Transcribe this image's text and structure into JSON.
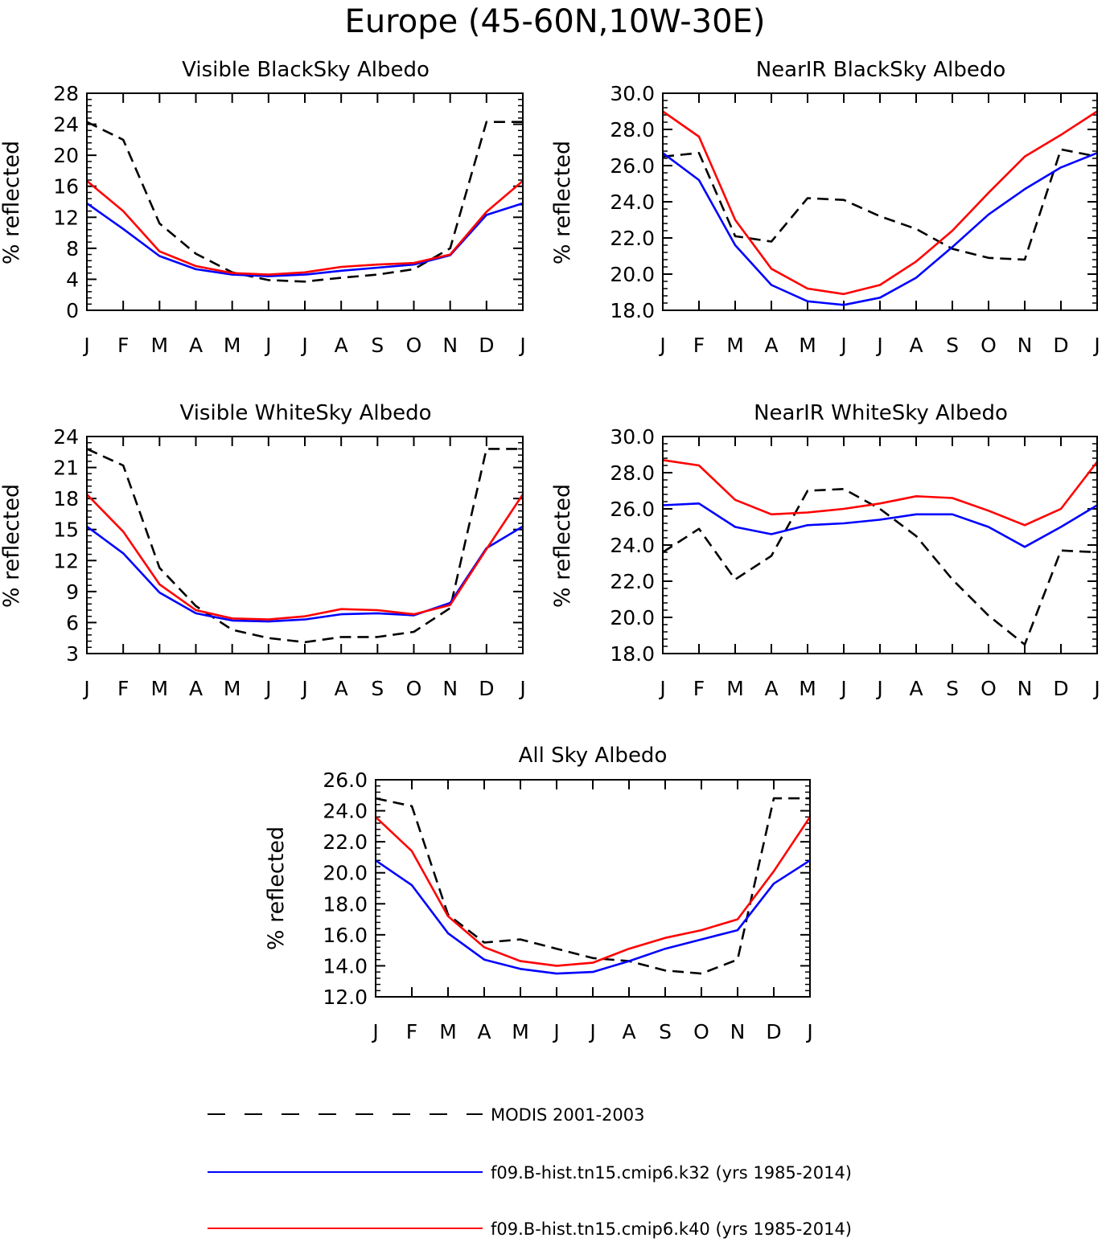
{
  "figure": {
    "title": "Europe (45-60N,10W-30E)"
  },
  "legend": {
    "items": [
      {
        "label": "MODIS 2001-2003",
        "color": "#000000",
        "style": "dashed"
      },
      {
        "label": "f09.B-hist.tn15.cmip6.k32 (yrs 1985-2014)",
        "color": "#0000ff",
        "style": "solid"
      },
      {
        "label": "f09.B-hist.tn15.cmip6.k40 (yrs 1985-2014)",
        "color": "#ff0000",
        "style": "solid"
      }
    ]
  },
  "chart_data": [
    {
      "type": "line",
      "title": "Visible BlackSky Albedo",
      "xlabel": "",
      "ylabel": "% reflected",
      "x": [
        "J",
        "F",
        "M",
        "A",
        "M",
        "J",
        "J",
        "A",
        "S",
        "O",
        "N",
        "D",
        "J"
      ],
      "ylim": [
        0,
        28
      ],
      "yticks": [
        "0",
        "4",
        "8",
        "12",
        "16",
        "20",
        "24",
        "28"
      ],
      "grid": false,
      "series": [
        {
          "name": "MODIS 2001-2003",
          "color": "#000000",
          "style": "dashed",
          "values": [
            24.3,
            22.0,
            11.2,
            7.3,
            4.9,
            3.9,
            3.7,
            4.2,
            4.6,
            5.3,
            8.0,
            24.3,
            24.3
          ]
        },
        {
          "name": "f09.B-hist.tn15.cmip6.k32 (yrs 1985-2014)",
          "color": "#0000ff",
          "style": "solid",
          "values": [
            13.8,
            10.5,
            7.0,
            5.3,
            4.6,
            4.4,
            4.6,
            5.1,
            5.5,
            5.9,
            7.1,
            12.3,
            13.8
          ]
        },
        {
          "name": "f09.B-hist.tn15.cmip6.k40 (yrs 1985-2014)",
          "color": "#ff0000",
          "style": "solid",
          "values": [
            16.7,
            12.8,
            7.6,
            5.7,
            4.8,
            4.6,
            4.9,
            5.6,
            5.9,
            6.1,
            7.2,
            12.7,
            16.7
          ]
        }
      ]
    },
    {
      "type": "line",
      "title": "NearIR BlackSky Albedo",
      "xlabel": "",
      "ylabel": "% reflected",
      "x": [
        "J",
        "F",
        "M",
        "A",
        "M",
        "J",
        "J",
        "A",
        "S",
        "O",
        "N",
        "D",
        "J"
      ],
      "ylim": [
        18,
        30
      ],
      "yticks": [
        "18.0",
        "20.0",
        "22.0",
        "24.0",
        "26.0",
        "28.0",
        "30.0"
      ],
      "grid": false,
      "series": [
        {
          "name": "MODIS 2001-2003",
          "color": "#000000",
          "style": "dashed",
          "values": [
            26.5,
            26.7,
            22.1,
            21.8,
            24.2,
            24.1,
            23.2,
            22.5,
            21.4,
            20.9,
            20.8,
            26.9,
            26.5
          ]
        },
        {
          "name": "f09.B-hist.tn15.cmip6.k32 (yrs 1985-2014)",
          "color": "#0000ff",
          "style": "solid",
          "values": [
            26.7,
            25.2,
            21.6,
            19.4,
            18.5,
            18.3,
            18.7,
            19.8,
            21.5,
            23.3,
            24.7,
            25.9,
            26.7
          ]
        },
        {
          "name": "f09.B-hist.tn15.cmip6.k40 (yrs 1985-2014)",
          "color": "#ff0000",
          "style": "solid",
          "values": [
            29.0,
            27.6,
            23.0,
            20.3,
            19.2,
            18.9,
            19.4,
            20.7,
            22.4,
            24.5,
            26.5,
            27.7,
            29.0
          ]
        }
      ]
    },
    {
      "type": "line",
      "title": "Visible WhiteSky Albedo",
      "xlabel": "",
      "ylabel": "% reflected",
      "x": [
        "J",
        "F",
        "M",
        "A",
        "M",
        "J",
        "J",
        "A",
        "S",
        "O",
        "N",
        "D",
        "J"
      ],
      "ylim": [
        3,
        24
      ],
      "yticks": [
        "3",
        "6",
        "9",
        "12",
        "15",
        "18",
        "21",
        "24"
      ],
      "grid": false,
      "series": [
        {
          "name": "MODIS 2001-2003",
          "color": "#000000",
          "style": "dashed",
          "values": [
            22.8,
            21.2,
            11.3,
            7.6,
            5.3,
            4.5,
            4.1,
            4.6,
            4.6,
            5.1,
            7.4,
            22.8,
            22.8
          ]
        },
        {
          "name": "f09.B-hist.tn15.cmip6.k32 (yrs 1985-2014)",
          "color": "#0000ff",
          "style": "solid",
          "values": [
            15.3,
            12.7,
            8.9,
            6.9,
            6.2,
            6.1,
            6.3,
            6.8,
            6.9,
            6.7,
            7.9,
            13.2,
            15.3
          ]
        },
        {
          "name": "f09.B-hist.tn15.cmip6.k40 (yrs 1985-2014)",
          "color": "#ff0000",
          "style": "solid",
          "values": [
            18.4,
            14.8,
            9.7,
            7.2,
            6.4,
            6.3,
            6.6,
            7.3,
            7.2,
            6.8,
            7.7,
            13.1,
            18.4
          ]
        }
      ]
    },
    {
      "type": "line",
      "title": "NearIR WhiteSky Albedo",
      "xlabel": "",
      "ylabel": "% reflected",
      "x": [
        "J",
        "F",
        "M",
        "A",
        "M",
        "J",
        "J",
        "A",
        "S",
        "O",
        "N",
        "D",
        "J"
      ],
      "ylim": [
        18,
        30
      ],
      "yticks": [
        "18.0",
        "20.0",
        "22.0",
        "24.0",
        "26.0",
        "28.0",
        "30.0"
      ],
      "grid": false,
      "series": [
        {
          "name": "MODIS 2001-2003",
          "color": "#000000",
          "style": "dashed",
          "values": [
            23.6,
            24.9,
            22.1,
            23.4,
            27.0,
            27.1,
            26.0,
            24.5,
            22.1,
            20.1,
            18.5,
            23.7,
            23.6
          ]
        },
        {
          "name": "f09.B-hist.tn15.cmip6.k32 (yrs 1985-2014)",
          "color": "#0000ff",
          "style": "solid",
          "values": [
            26.2,
            26.3,
            25.0,
            24.6,
            25.1,
            25.2,
            25.4,
            25.7,
            25.7,
            25.0,
            23.9,
            25.0,
            26.2
          ]
        },
        {
          "name": "f09.B-hist.tn15.cmip6.k40 (yrs 1985-2014)",
          "color": "#ff0000",
          "style": "solid",
          "values": [
            28.7,
            28.4,
            26.5,
            25.7,
            25.8,
            26.0,
            26.3,
            26.7,
            26.6,
            25.9,
            25.1,
            26.0,
            28.6
          ]
        }
      ]
    },
    {
      "type": "line",
      "title": "All Sky Albedo",
      "xlabel": "",
      "ylabel": "% reflected",
      "x": [
        "J",
        "F",
        "M",
        "A",
        "M",
        "J",
        "J",
        "A",
        "S",
        "O",
        "N",
        "D",
        "J"
      ],
      "ylim": [
        12,
        26
      ],
      "yticks": [
        "12.0",
        "14.0",
        "16.0",
        "18.0",
        "20.0",
        "22.0",
        "24.0",
        "26.0"
      ],
      "grid": false,
      "series": [
        {
          "name": "MODIS 2001-2003",
          "color": "#000000",
          "style": "dashed",
          "values": [
            24.8,
            24.3,
            17.3,
            15.5,
            15.7,
            15.1,
            14.5,
            14.3,
            13.7,
            13.5,
            14.4,
            24.8,
            24.8
          ]
        },
        {
          "name": "f09.B-hist.tn15.cmip6.k32 (yrs 1985-2014)",
          "color": "#0000ff",
          "style": "solid",
          "values": [
            20.8,
            19.2,
            16.1,
            14.4,
            13.8,
            13.5,
            13.6,
            14.3,
            15.1,
            15.7,
            16.3,
            19.3,
            20.8
          ]
        },
        {
          "name": "f09.B-hist.tn15.cmip6.k40 (yrs 1985-2014)",
          "color": "#ff0000",
          "style": "solid",
          "values": [
            23.6,
            21.4,
            17.2,
            15.2,
            14.3,
            14.0,
            14.2,
            15.1,
            15.8,
            16.3,
            17.0,
            20.1,
            23.6
          ]
        }
      ]
    }
  ]
}
